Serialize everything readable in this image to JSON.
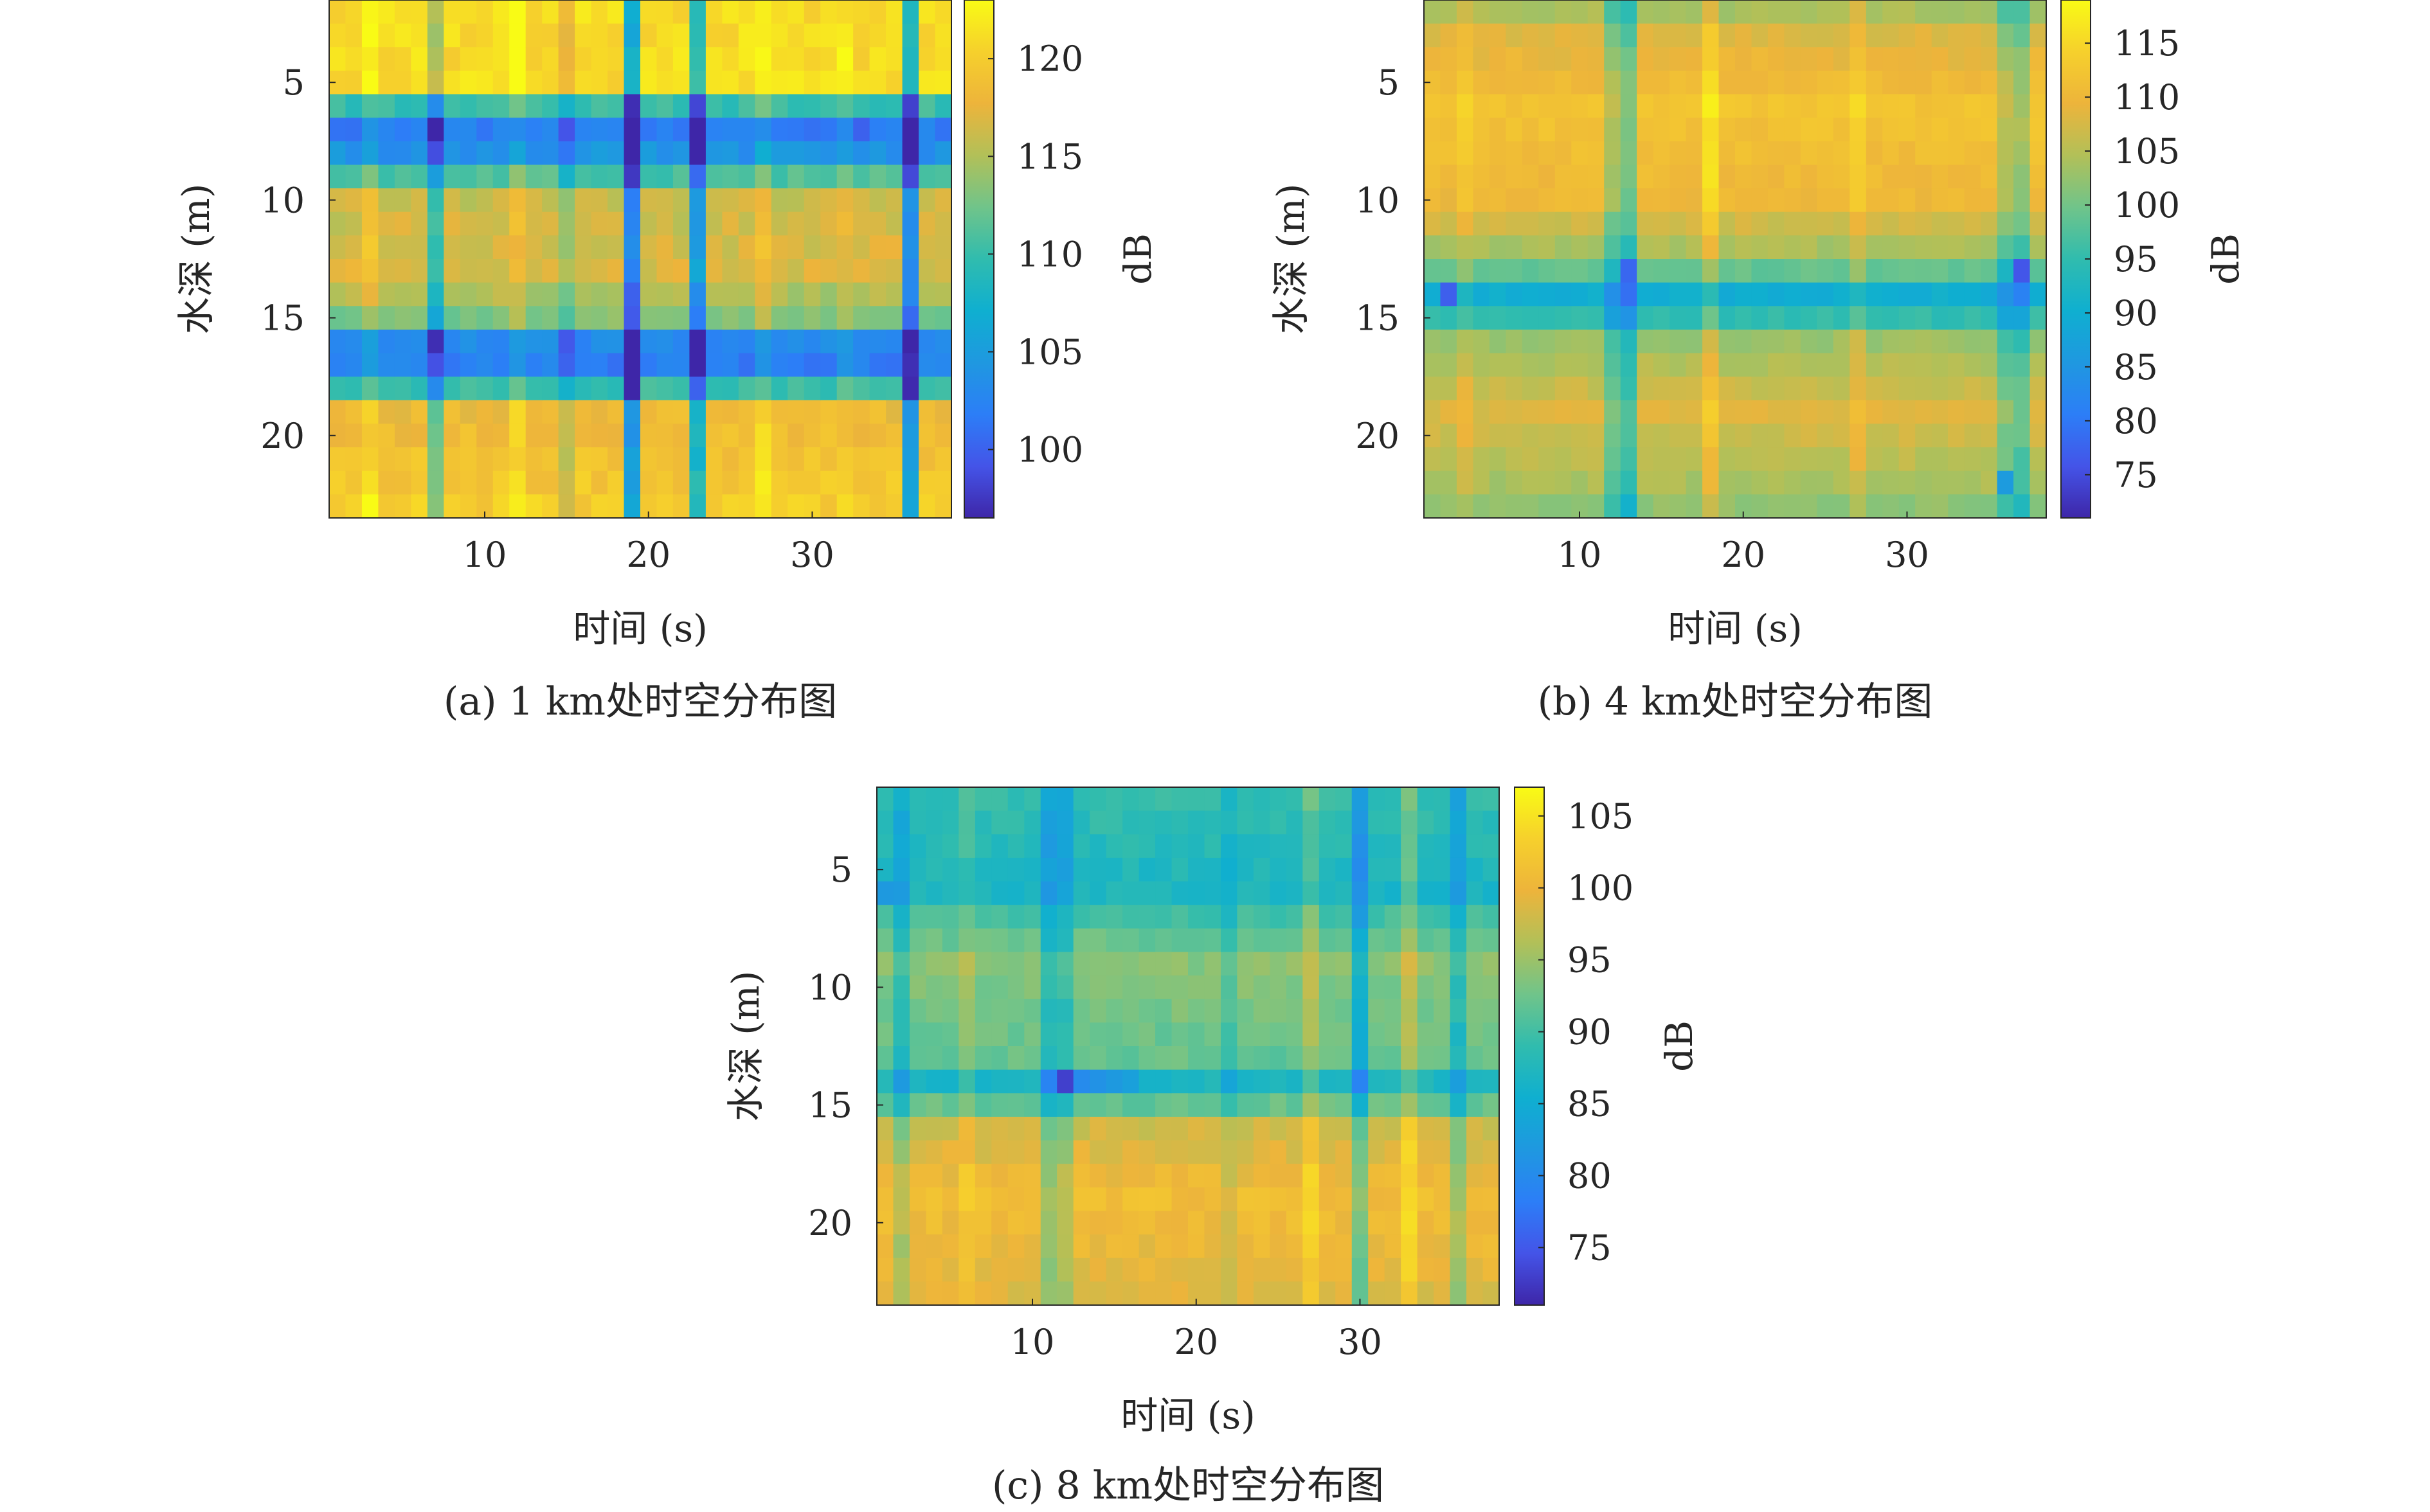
{
  "chart_data": [
    {
      "type": "heatmap",
      "caption": "(a) 1 km处时空分布图",
      "xlabel": "时间 (s)",
      "ylabel": "水深 (m)",
      "colorbar_label": "dB",
      "xlim": [
        0.5,
        38.5
      ],
      "ylim": [
        1.5,
        23.5
      ],
      "xticks": [
        10,
        20,
        30
      ],
      "yticks": [
        5,
        10,
        15,
        20
      ],
      "clim": [
        96.5,
        123
      ],
      "colorbar_ticks": [
        100,
        105,
        110,
        115,
        120
      ],
      "x": {
        "start": 1,
        "end": 38
      },
      "y": {
        "start": 2,
        "end": 23
      },
      "time_profile": {
        "base": 0,
        "drops": [
          {
            "x": 7,
            "amount": 6
          },
          {
            "x": 15,
            "amount": 3
          },
          {
            "x": 19,
            "amount": 14
          },
          {
            "x": 23,
            "amount": 11
          },
          {
            "x": 36,
            "amount": 13
          }
        ],
        "bumps": [
          {
            "x": 3,
            "amount": 2
          },
          {
            "x": 12,
            "amount": 2
          },
          {
            "x": 27,
            "amount": 2
          },
          {
            "x": 32,
            "amount": 1
          }
        ]
      },
      "depth_profile": {
        "levels": [
          {
            "y": 2,
            "v": 121
          },
          {
            "y": 5,
            "v": 121
          },
          {
            "y": 6,
            "v": 110
          },
          {
            "y": 7,
            "v": 102
          },
          {
            "y": 8,
            "v": 104
          },
          {
            "y": 9,
            "v": 111
          },
          {
            "y": 10,
            "v": 116
          },
          {
            "y": 13,
            "v": 117
          },
          {
            "y": 15,
            "v": 113
          },
          {
            "y": 16,
            "v": 103
          },
          {
            "y": 17,
            "v": 102
          },
          {
            "y": 18,
            "v": 110
          },
          {
            "y": 19,
            "v": 118
          },
          {
            "y": 23,
            "v": 120
          }
        ]
      },
      "hotspots": [
        {
          "x": 36,
          "y": 17,
          "v": 97
        },
        {
          "x": 2,
          "y": 7,
          "v": 101
        },
        {
          "x": 33,
          "y": 7,
          "v": 100
        },
        {
          "x": 7,
          "y": 17,
          "v": 99
        }
      ]
    },
    {
      "type": "heatmap",
      "caption": "(b) 4 km处时空分布图",
      "xlabel": "时间 (s)",
      "ylabel": "水深 (m)",
      "colorbar_label": "dB",
      "xlim": [
        0.5,
        38.5
      ],
      "ylim": [
        1.5,
        23.5
      ],
      "xticks": [
        10,
        20,
        30
      ],
      "yticks": [
        5,
        10,
        15,
        20
      ],
      "clim": [
        71,
        119
      ],
      "colorbar_ticks": [
        75,
        80,
        85,
        90,
        95,
        100,
        105,
        110,
        115
      ],
      "x": {
        "start": 1,
        "end": 38
      },
      "y": {
        "start": 2,
        "end": 23
      },
      "time_profile": {
        "base": 0,
        "drops": [
          {
            "x": 12,
            "amount": 7
          },
          {
            "x": 13,
            "amount": 10
          },
          {
            "x": 36,
            "amount": 6
          },
          {
            "x": 37,
            "amount": 8
          }
        ],
        "bumps": [
          {
            "x": 18,
            "amount": 5
          },
          {
            "x": 3,
            "amount": 2
          },
          {
            "x": 27,
            "amount": 3
          }
        ]
      },
      "depth_profile": {
        "levels": [
          {
            "y": 2,
            "v": 104
          },
          {
            "y": 3,
            "v": 108
          },
          {
            "y": 6,
            "v": 112
          },
          {
            "y": 10,
            "v": 110
          },
          {
            "y": 12,
            "v": 104
          },
          {
            "y": 13,
            "v": 99
          },
          {
            "y": 14,
            "v": 90
          },
          {
            "y": 15,
            "v": 95
          },
          {
            "y": 16,
            "v": 103
          },
          {
            "y": 19,
            "v": 108
          },
          {
            "y": 22,
            "v": 104
          },
          {
            "y": 23,
            "v": 102
          }
        ]
      },
      "hotspots": [
        {
          "x": 2,
          "y": 14,
          "v": 77
        },
        {
          "x": 13,
          "y": 13,
          "v": 78
        },
        {
          "x": 37,
          "y": 13,
          "v": 76
        },
        {
          "x": 36,
          "y": 22,
          "v": 86
        }
      ]
    },
    {
      "type": "heatmap",
      "caption": "(c) 8 km处时空分布图",
      "xlabel": "时间 (s)",
      "ylabel": "水深 (m)",
      "colorbar_label": "dB",
      "xlim": [
        0.5,
        38.5
      ],
      "ylim": [
        1.5,
        23.5
      ],
      "xticks": [
        10,
        20,
        30
      ],
      "yticks": [
        5,
        10,
        15,
        20
      ],
      "clim": [
        71,
        107
      ],
      "colorbar_ticks": [
        75,
        80,
        85,
        90,
        95,
        100,
        105
      ],
      "x": {
        "start": 1,
        "end": 38
      },
      "y": {
        "start": 2,
        "end": 23
      },
      "time_profile": {
        "base": 0,
        "drops": [
          {
            "x": 2,
            "amount": 4
          },
          {
            "x": 11,
            "amount": 5
          },
          {
            "x": 12,
            "amount": 4
          },
          {
            "x": 30,
            "amount": 7
          },
          {
            "x": 36,
            "amount": 5
          },
          {
            "x": 22,
            "amount": 2
          }
        ],
        "bumps": [
          {
            "x": 27,
            "amount": 3
          },
          {
            "x": 33,
            "amount": 4
          },
          {
            "x": 6,
            "amount": 2
          }
        ]
      },
      "depth_profile": {
        "levels": [
          {
            "y": 2,
            "v": 89
          },
          {
            "y": 6,
            "v": 87
          },
          {
            "y": 7,
            "v": 90
          },
          {
            "y": 9,
            "v": 94
          },
          {
            "y": 13,
            "v": 92
          },
          {
            "y": 14,
            "v": 87
          },
          {
            "y": 15,
            "v": 92
          },
          {
            "y": 16,
            "v": 98
          },
          {
            "y": 19,
            "v": 101
          },
          {
            "y": 23,
            "v": 99
          }
        ]
      },
      "hotspots": [
        {
          "x": 12,
          "y": 14,
          "v": 73
        },
        {
          "x": 11,
          "y": 14,
          "v": 79
        },
        {
          "x": 13,
          "y": 14,
          "v": 80
        },
        {
          "x": 14,
          "y": 14,
          "v": 81
        },
        {
          "x": 15,
          "y": 14,
          "v": 82
        },
        {
          "x": 16,
          "y": 14,
          "v": 83
        },
        {
          "x": 1,
          "y": 6,
          "v": 82
        },
        {
          "x": 30,
          "y": 6,
          "v": 81
        }
      ]
    }
  ]
}
